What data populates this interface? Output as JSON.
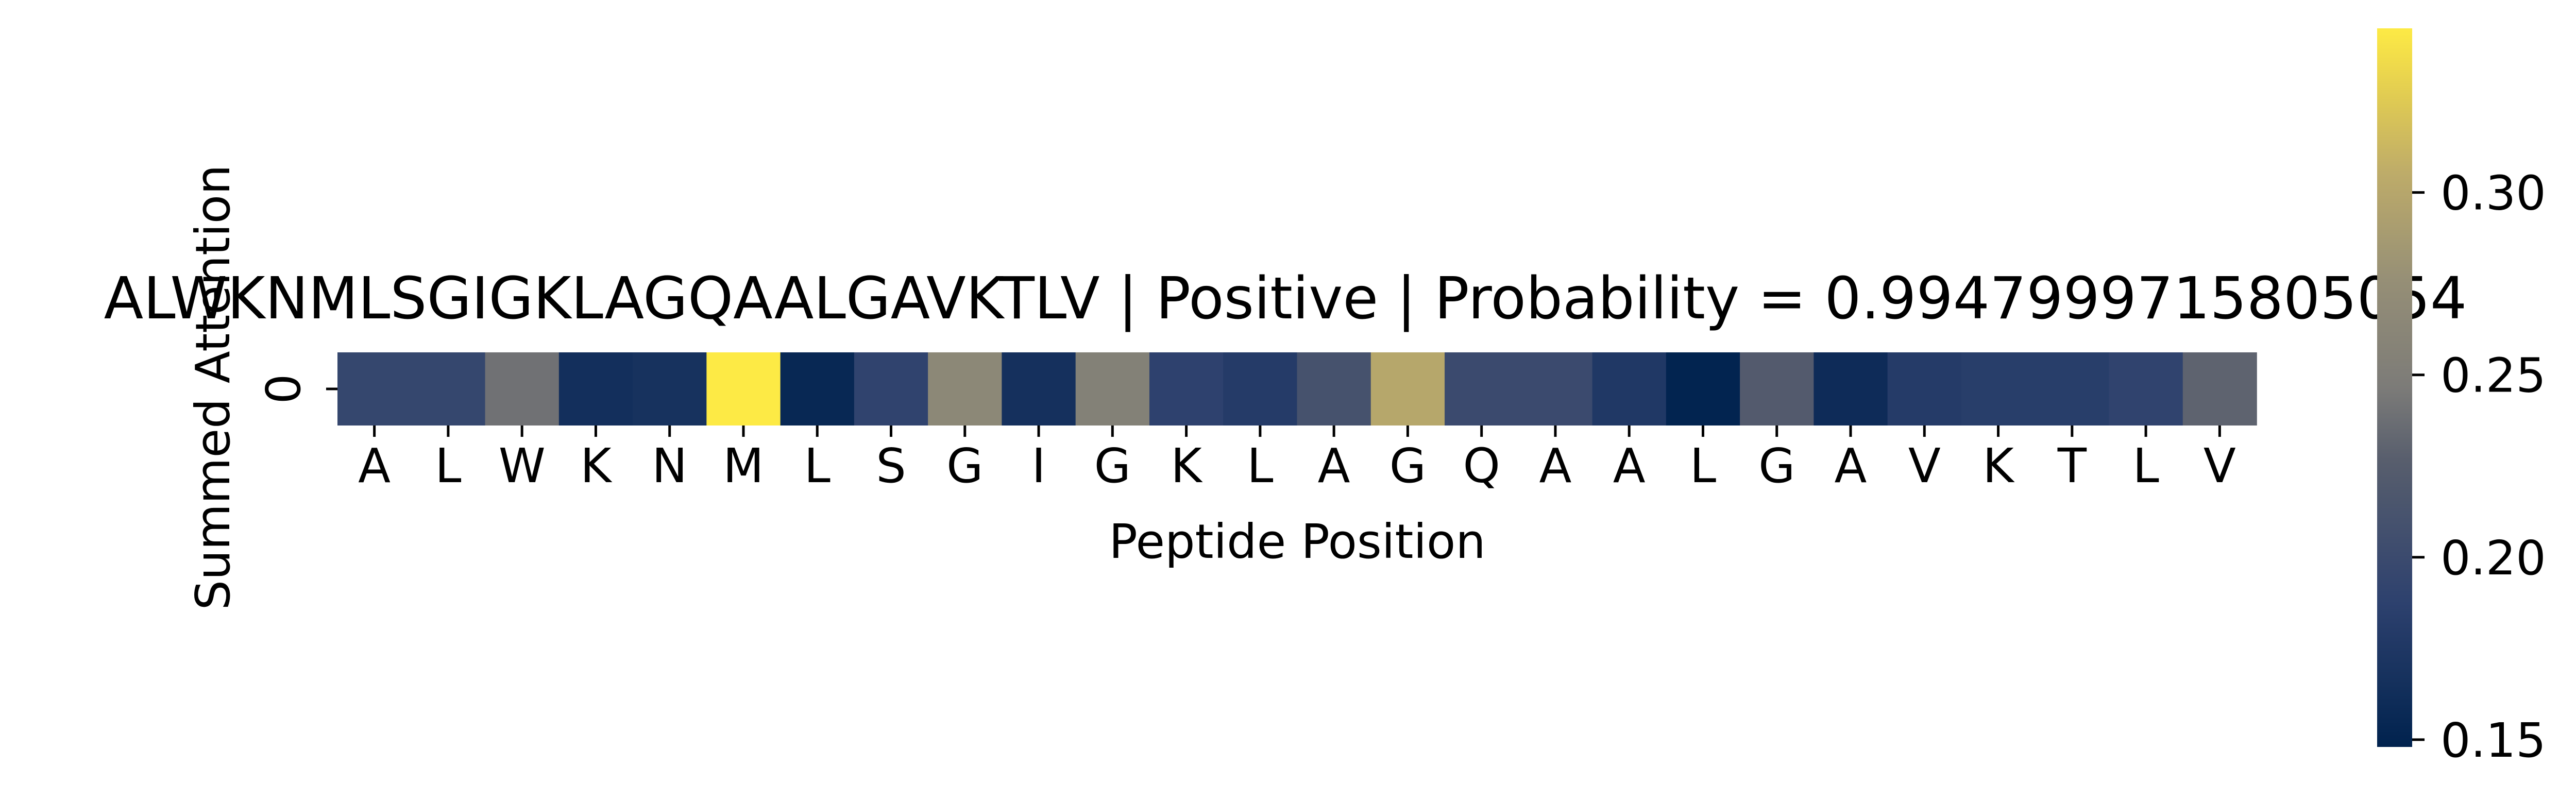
{
  "chart_data": {
    "type": "heatmap",
    "title": "ALWKNMLSGIGKLAGQAALGAVKTLV | Positive | Probability = 0.9947999715805054",
    "xlabel": "Peptide Position",
    "ylabel": "Summed Attention",
    "row_labels": [
      "0"
    ],
    "x_tick_labels": [
      "A",
      "L",
      "W",
      "K",
      "N",
      "M",
      "L",
      "S",
      "G",
      "I",
      "G",
      "K",
      "L",
      "A",
      "G",
      "Q",
      "A",
      "A",
      "L",
      "G",
      "A",
      "V",
      "K",
      "T",
      "L",
      "V"
    ],
    "values": [
      0.195,
      0.195,
      0.24,
      0.165,
      0.168,
      0.345,
      0.155,
      0.19,
      0.265,
      0.166,
      0.255,
      0.188,
      0.18,
      0.21,
      0.3,
      0.2,
      0.2,
      0.176,
      0.15,
      0.222,
      0.16,
      0.18,
      0.183,
      0.183,
      0.19,
      0.23
    ],
    "colormap": "cividis",
    "color_range": [
      0.148,
      0.345
    ],
    "colorbar": {
      "ticks": [
        0.15,
        0.2,
        0.25,
        0.3
      ],
      "tick_labels": [
        "0.15",
        "0.20",
        "0.25",
        "0.30"
      ]
    },
    "grid": false
  }
}
